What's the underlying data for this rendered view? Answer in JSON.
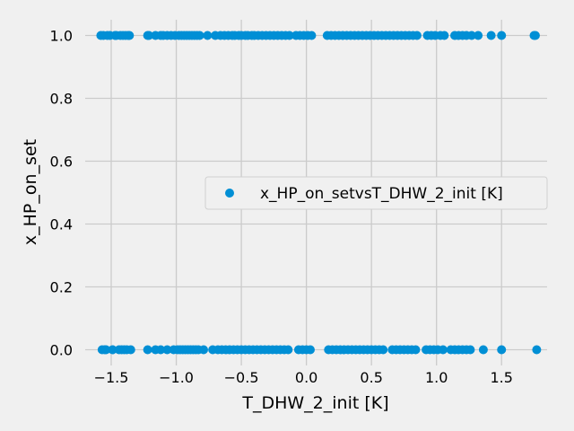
{
  "chart_data": {
    "type": "scatter",
    "title": "",
    "xlabel": "T_DHW_2_init [K]",
    "ylabel": "x_HP_on_set",
    "xlim": [
      -1.7,
      1.85
    ],
    "ylim": [
      -0.05,
      1.05
    ],
    "x_ticks": [
      -1.5,
      -1.0,
      -0.5,
      0.0,
      0.5,
      1.0,
      1.5
    ],
    "x_tick_labels": [
      "−1.5",
      "−1.0",
      "−0.5",
      "0.0",
      "0.5",
      "1.0",
      "1.5"
    ],
    "y_ticks": [
      0.0,
      0.2,
      0.4,
      0.6,
      0.8,
      1.0
    ],
    "y_tick_labels": [
      "0.0",
      "0.2",
      "0.4",
      "0.6",
      "0.8",
      "1.0"
    ],
    "grid": true,
    "legend": {
      "position": "center-right",
      "entries": [
        "x_HP_on_setvsT_DHW_2_init [K]"
      ]
    },
    "color": "#008fd5",
    "series": [
      {
        "name": "x_HP_on_setvsT_DHW_2_init [K]",
        "points": [
          [
            -1.58,
            1
          ],
          [
            -1.56,
            1
          ],
          [
            -1.53,
            1
          ],
          [
            -1.51,
            1
          ],
          [
            -1.47,
            1
          ],
          [
            -1.46,
            1
          ],
          [
            -1.43,
            1
          ],
          [
            -1.41,
            1
          ],
          [
            -1.39,
            1
          ],
          [
            -1.37,
            1
          ],
          [
            -1.36,
            1
          ],
          [
            -1.22,
            1
          ],
          [
            -1.21,
            1
          ],
          [
            -1.16,
            1
          ],
          [
            -1.12,
            1
          ],
          [
            -1.1,
            1
          ],
          [
            -1.07,
            1
          ],
          [
            -1.04,
            1
          ],
          [
            -1.01,
            1
          ],
          [
            -0.98,
            1
          ],
          [
            -0.96,
            1
          ],
          [
            -0.94,
            1
          ],
          [
            -0.92,
            1
          ],
          [
            -0.9,
            1
          ],
          [
            -0.88,
            1
          ],
          [
            -0.86,
            1
          ],
          [
            -0.84,
            1
          ],
          [
            -0.82,
            1
          ],
          [
            -0.76,
            1
          ],
          [
            -0.7,
            1
          ],
          [
            -0.66,
            1
          ],
          [
            -0.63,
            1
          ],
          [
            -0.6,
            1
          ],
          [
            -0.57,
            1
          ],
          [
            -0.55,
            1
          ],
          [
            -0.52,
            1
          ],
          [
            -0.5,
            1
          ],
          [
            -0.47,
            1
          ],
          [
            -0.45,
            1
          ],
          [
            -0.42,
            1
          ],
          [
            -0.4,
            1
          ],
          [
            -0.37,
            1
          ],
          [
            -0.34,
            1
          ],
          [
            -0.31,
            1
          ],
          [
            -0.28,
            1
          ],
          [
            -0.25,
            1
          ],
          [
            -0.22,
            1
          ],
          [
            -0.19,
            1
          ],
          [
            -0.16,
            1
          ],
          [
            -0.13,
            1
          ],
          [
            -0.08,
            1
          ],
          [
            -0.05,
            1
          ],
          [
            -0.02,
            1
          ],
          [
            0.01,
            1
          ],
          [
            0.04,
            1
          ],
          [
            0.16,
            1
          ],
          [
            0.19,
            1
          ],
          [
            0.22,
            1
          ],
          [
            0.25,
            1
          ],
          [
            0.28,
            1
          ],
          [
            0.31,
            1
          ],
          [
            0.34,
            1
          ],
          [
            0.37,
            1
          ],
          [
            0.4,
            1
          ],
          [
            0.43,
            1
          ],
          [
            0.46,
            1
          ],
          [
            0.49,
            1
          ],
          [
            0.52,
            1
          ],
          [
            0.55,
            1
          ],
          [
            0.58,
            1
          ],
          [
            0.61,
            1
          ],
          [
            0.64,
            1
          ],
          [
            0.67,
            1
          ],
          [
            0.7,
            1
          ],
          [
            0.73,
            1
          ],
          [
            0.76,
            1
          ],
          [
            0.79,
            1
          ],
          [
            0.82,
            1
          ],
          [
            0.85,
            1
          ],
          [
            0.93,
            1
          ],
          [
            0.96,
            1
          ],
          [
            0.99,
            1
          ],
          [
            1.03,
            1
          ],
          [
            1.06,
            1
          ],
          [
            1.14,
            1
          ],
          [
            1.17,
            1
          ],
          [
            1.2,
            1
          ],
          [
            1.23,
            1
          ],
          [
            1.27,
            1
          ],
          [
            1.32,
            1
          ],
          [
            1.42,
            1
          ],
          [
            1.5,
            1
          ],
          [
            1.75,
            1
          ],
          [
            1.76,
            1
          ],
          [
            -1.57,
            0
          ],
          [
            -1.55,
            0
          ],
          [
            -1.54,
            0
          ],
          [
            -1.49,
            0
          ],
          [
            -1.44,
            0
          ],
          [
            -1.42,
            0
          ],
          [
            -1.4,
            0
          ],
          [
            -1.38,
            0
          ],
          [
            -1.35,
            0
          ],
          [
            -1.22,
            0
          ],
          [
            -1.16,
            0
          ],
          [
            -1.12,
            0
          ],
          [
            -1.07,
            0
          ],
          [
            -1.02,
            0
          ],
          [
            -0.99,
            0
          ],
          [
            -0.97,
            0
          ],
          [
            -0.95,
            0
          ],
          [
            -0.93,
            0
          ],
          [
            -0.91,
            0
          ],
          [
            -0.89,
            0
          ],
          [
            -0.87,
            0
          ],
          [
            -0.85,
            0
          ],
          [
            -0.83,
            0
          ],
          [
            -0.79,
            0
          ],
          [
            -0.72,
            0
          ],
          [
            -0.68,
            0
          ],
          [
            -0.65,
            0
          ],
          [
            -0.62,
            0
          ],
          [
            -0.59,
            0
          ],
          [
            -0.56,
            0
          ],
          [
            -0.53,
            0
          ],
          [
            -0.5,
            0
          ],
          [
            -0.47,
            0
          ],
          [
            -0.44,
            0
          ],
          [
            -0.41,
            0
          ],
          [
            -0.38,
            0
          ],
          [
            -0.35,
            0
          ],
          [
            -0.32,
            0
          ],
          [
            -0.29,
            0
          ],
          [
            -0.26,
            0
          ],
          [
            -0.23,
            0
          ],
          [
            -0.2,
            0
          ],
          [
            -0.17,
            0
          ],
          [
            -0.14,
            0
          ],
          [
            -0.06,
            0
          ],
          [
            -0.03,
            0
          ],
          [
            0.0,
            0
          ],
          [
            0.03,
            0
          ],
          [
            0.17,
            0
          ],
          [
            0.2,
            0
          ],
          [
            0.23,
            0
          ],
          [
            0.26,
            0
          ],
          [
            0.29,
            0
          ],
          [
            0.32,
            0
          ],
          [
            0.35,
            0
          ],
          [
            0.38,
            0
          ],
          [
            0.41,
            0
          ],
          [
            0.44,
            0
          ],
          [
            0.47,
            0
          ],
          [
            0.5,
            0
          ],
          [
            0.53,
            0
          ],
          [
            0.56,
            0
          ],
          [
            0.59,
            0
          ],
          [
            0.66,
            0
          ],
          [
            0.69,
            0
          ],
          [
            0.72,
            0
          ],
          [
            0.75,
            0
          ],
          [
            0.78,
            0
          ],
          [
            0.81,
            0
          ],
          [
            0.84,
            0
          ],
          [
            0.92,
            0
          ],
          [
            0.95,
            0
          ],
          [
            0.98,
            0
          ],
          [
            1.01,
            0
          ],
          [
            1.05,
            0
          ],
          [
            1.11,
            0
          ],
          [
            1.14,
            0
          ],
          [
            1.17,
            0
          ],
          [
            1.2,
            0
          ],
          [
            1.23,
            0
          ],
          [
            1.26,
            0
          ],
          [
            1.36,
            0
          ],
          [
            1.5,
            0
          ],
          [
            1.77,
            0
          ]
        ]
      }
    ]
  }
}
